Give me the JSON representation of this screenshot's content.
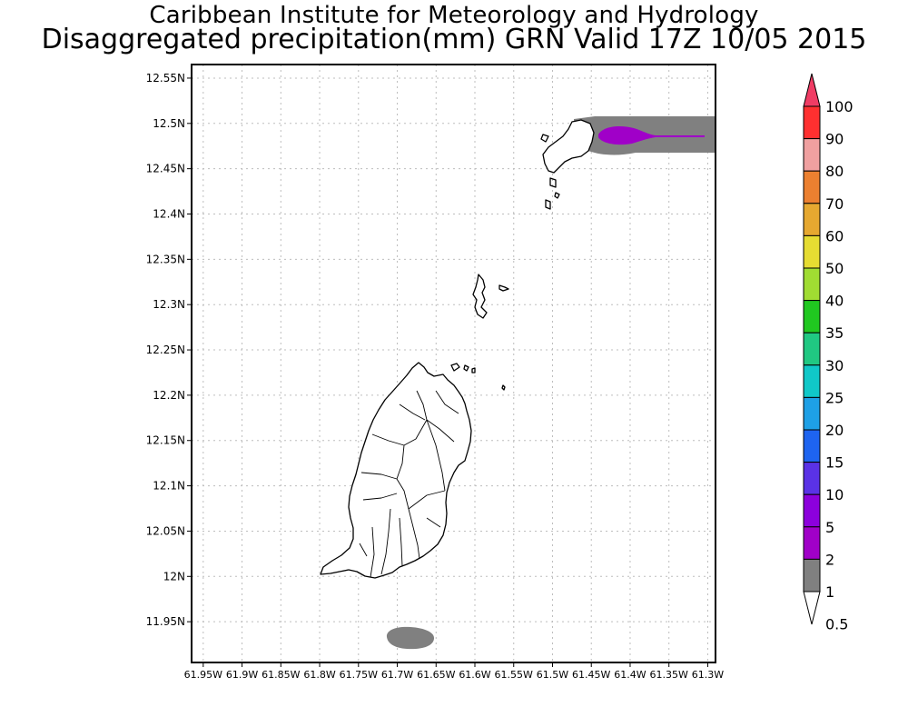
{
  "header": {
    "line1": "Caribbean Institute for Meteorology and Hydrology",
    "line2": "Disaggregated precipitation(mm) GRN Valid 17Z 10/05 2015"
  },
  "axes": {
    "y_ticks": [
      "12.55N",
      "12.5N",
      "12.45N",
      "12.4N",
      "12.35N",
      "12.3N",
      "12.25N",
      "12.2N",
      "12.15N",
      "12.1N",
      "12.05N",
      "12N",
      "11.95N"
    ],
    "x_ticks": [
      "61.95W",
      "61.9W",
      "61.85W",
      "61.8W",
      "61.75W",
      "61.7W",
      "61.65W",
      "61.6W",
      "61.55W",
      "61.5W",
      "61.45W",
      "61.4W",
      "61.35W",
      "61.3W"
    ],
    "lat_range": [
      11.905,
      12.565
    ],
    "lon_range": [
      -61.965,
      -61.29
    ]
  },
  "legend": {
    "labels": [
      "100",
      "90",
      "80",
      "70",
      "60",
      "50",
      "40",
      "35",
      "30",
      "25",
      "20",
      "15",
      "10",
      "5",
      "2",
      "1",
      "0.5"
    ],
    "colors": [
      "#f03c64",
      "#ff3030",
      "#f0a0a0",
      "#ec8030",
      "#e6a830",
      "#e6dc32",
      "#a0dc32",
      "#20c820",
      "#20c882",
      "#10c8c8",
      "#1ea0e6",
      "#1e64f0",
      "#5a32e6",
      "#8c00dc",
      "#a000c8",
      "#808080",
      "#ffffff"
    ]
  },
  "precip_areas": [
    {
      "name": "north-band",
      "class": "1-2mm",
      "color": "#808080"
    },
    {
      "name": "north-core",
      "class": "2-5mm",
      "color": "#a000c8"
    },
    {
      "name": "south-blob",
      "class": "1-2mm",
      "color": "#808080"
    }
  ]
}
